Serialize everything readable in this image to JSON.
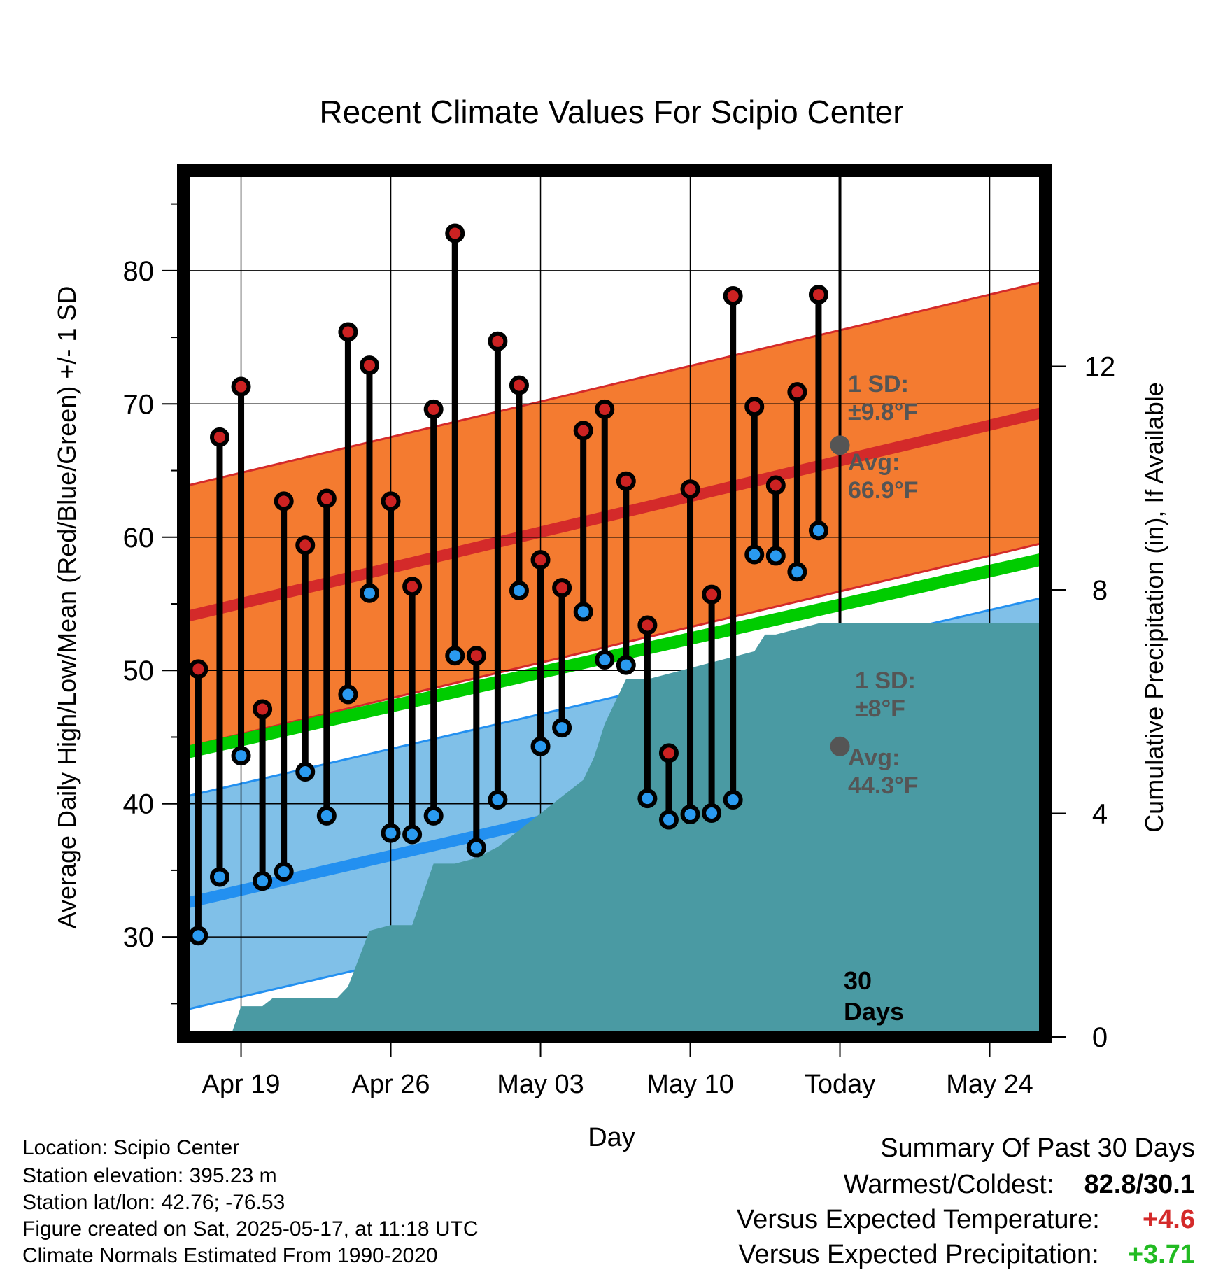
{
  "title": "Recent Climate Values For Scipio Center",
  "info": {
    "location": "Location: Scipio Center",
    "elevation": "Station elevation: 395.23 m",
    "latlon": "Station lat/lon: 42.76; -76.53",
    "created": "Figure created on Sat, 2025-05-17, at 11:18 UTC",
    "normals": "Climate Normals Estimated From 1990-2020"
  },
  "summary": {
    "heading": "Summary Of Past 30 Days",
    "warmest_label": "Warmest/Coldest:",
    "warmest_value": "82.8/30.1",
    "temp_label": "Versus Expected Temperature:",
    "temp_value": "+4.6",
    "precip_label": "Versus Expected Precipitation:",
    "precip_value": "+3.71"
  },
  "annotations": {
    "high_sd_1": "1 SD:",
    "high_sd_2": "±9.8°F",
    "high_avg_1": "Avg:",
    "high_avg_2": "66.9°F",
    "low_sd_1": "1 SD:",
    "low_sd_2": "±8°F",
    "low_avg_1": "Avg:",
    "low_avg_2": "44.3°F",
    "days_1": "30",
    "days_2": "Days"
  },
  "colors": {
    "high_band": "#f47b30",
    "high_line": "#d42a2a",
    "low_band": "#80c0e8",
    "low_line": "#2390f0",
    "mean_line": "#00cc00",
    "precip": "#4a9aa3",
    "high_dot": "#cc2222",
    "low_dot": "#2a9af0",
    "annotation": "#555555",
    "positive_temp": "#d42a2a",
    "positive_precip": "#22bb22"
  },
  "chart_data": {
    "type": "line",
    "title": "Recent Climate Values For Scipio Center",
    "xlabel": "Day",
    "ylabel": "Average Daily High/Low/Mean (Red/Blue/Green) +/- 1 SD",
    "y2label": "Cumulative Precipitation (in), If Available",
    "xlim": [
      -2.7,
      37.6
    ],
    "ylim": [
      22.5,
      87.5
    ],
    "y2lim": [
      0,
      15.5
    ],
    "x_ticks": [
      {
        "x": 0,
        "label": "Apr 19"
      },
      {
        "x": 7,
        "label": "Apr 26"
      },
      {
        "x": 14,
        "label": "May 03"
      },
      {
        "x": 21,
        "label": "May 10"
      },
      {
        "x": 28,
        "label": "Today"
      },
      {
        "x": 35,
        "label": "May 24"
      }
    ],
    "y_ticks": [
      30,
      40,
      50,
      60,
      70,
      80
    ],
    "y2_ticks": [
      0,
      4,
      8,
      12
    ],
    "today_x": 28,
    "days": [
      -2,
      -1,
      0,
      1,
      2,
      3,
      4,
      5,
      6,
      7,
      8,
      9,
      10,
      11,
      12,
      13,
      14,
      15,
      16,
      17,
      18,
      19,
      20,
      21,
      22,
      23,
      24,
      25,
      26,
      27
    ],
    "highs": [
      50.1,
      67.5,
      71.3,
      47.1,
      62.7,
      59.4,
      62.9,
      75.4,
      72.9,
      62.7,
      56.3,
      69.6,
      82.8,
      51.1,
      74.7,
      71.4,
      58.3,
      56.2,
      68.0,
      69.6,
      64.2,
      53.4,
      43.8,
      63.6,
      55.7,
      78.1,
      69.8,
      63.9,
      70.9,
      78.2
    ],
    "lows": [
      30.1,
      34.5,
      43.6,
      34.2,
      34.9,
      42.4,
      39.1,
      48.2,
      55.8,
      37.8,
      37.7,
      39.1,
      51.1,
      36.7,
      40.3,
      56.0,
      44.3,
      45.7,
      54.4,
      50.8,
      50.4,
      40.4,
      38.8,
      39.2,
      39.3,
      40.3,
      58.7,
      58.6,
      57.4,
      60.5
    ],
    "normal_high": {
      "x": [
        -2.7,
        37.6
      ],
      "values": [
        54.0,
        69.4
      ]
    },
    "normal_high_sd": 9.8,
    "normal_low": {
      "x": [
        -2.7,
        37.6
      ],
      "values": [
        32.5,
        47.5
      ]
    },
    "normal_low_sd": 8.0,
    "normal_mean": {
      "x": [
        -2.7,
        37.6
      ],
      "values": [
        43.8,
        58.4
      ]
    },
    "today_normal_high": 66.9,
    "today_normal_low": 44.3,
    "precip_x": [
      -0.5,
      0,
      0.5,
      1.0,
      1.5,
      2.0,
      4.5,
      5.0,
      6.0,
      7.0,
      8.0,
      9.0,
      9.5,
      10.0,
      11.0,
      12.0,
      13.0,
      14.0,
      15.0,
      16.0,
      16.5,
      17.0,
      18.0,
      19.0,
      20.0,
      21.0,
      22.0,
      23.0,
      24.0,
      24.5,
      25.0,
      26.0,
      27.0,
      28.0,
      37.6
    ],
    "precip_y": [
      0.0,
      0.55,
      0.55,
      0.55,
      0.7,
      0.7,
      0.7,
      0.9,
      1.9,
      2.0,
      2.0,
      3.1,
      3.1,
      3.1,
      3.2,
      3.4,
      3.7,
      4.0,
      4.3,
      4.6,
      5.0,
      5.6,
      6.4,
      6.4,
      6.5,
      6.6,
      6.7,
      6.8,
      6.9,
      7.2,
      7.2,
      7.3,
      7.4,
      7.4,
      7.4
    ]
  }
}
